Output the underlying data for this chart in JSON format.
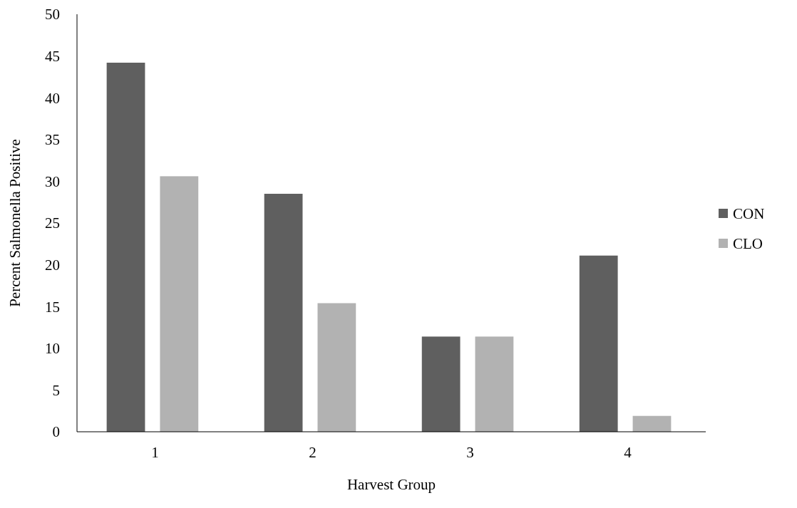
{
  "chart_data": {
    "type": "bar",
    "xlabel": "Harvest Group",
    "ylabel": "Percent Salmonella Positive",
    "categories": [
      "1",
      "2",
      "3",
      "4"
    ],
    "series": [
      {
        "name": "CON",
        "color": "#5f5f5f",
        "values": [
          44.2,
          28.5,
          11.4,
          21.1
        ]
      },
      {
        "name": "CLO",
        "color": "#b2b2b2",
        "values": [
          30.6,
          15.4,
          11.4,
          1.9
        ]
      }
    ],
    "ylim": [
      0,
      50
    ],
    "yticks": [
      0,
      5,
      10,
      15,
      20,
      25,
      30,
      35,
      40,
      45,
      50
    ],
    "grid": false,
    "legend": "right"
  }
}
